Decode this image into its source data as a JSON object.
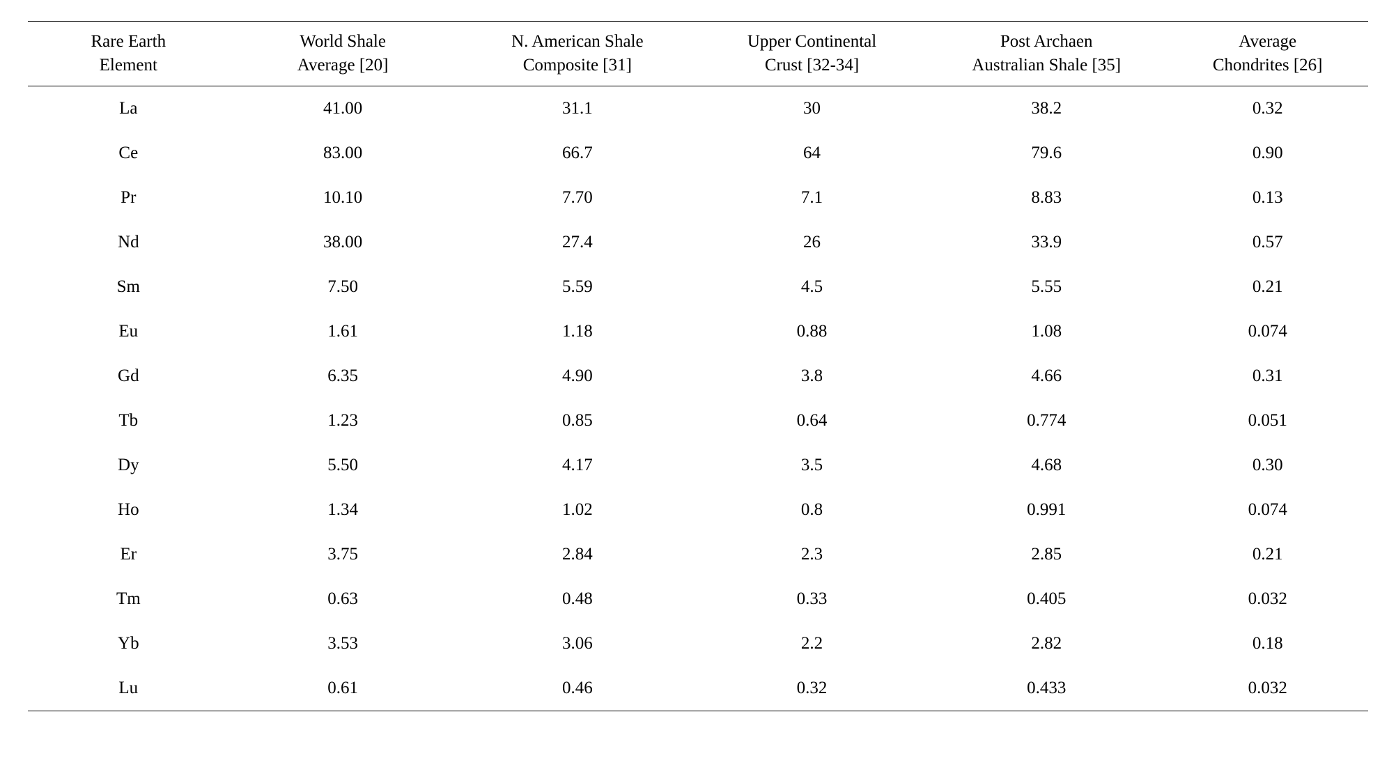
{
  "table": {
    "type": "table",
    "background_color": "#ffffff",
    "text_color": "#000000",
    "border_color": "#000000",
    "font_family": "Times New Roman",
    "header_fontsize": 25,
    "body_fontsize": 25,
    "columns": [
      {
        "line1": "Rare Earth",
        "line2": "Element",
        "width_pct": 15
      },
      {
        "line1": "World Shale",
        "line2": "Average [20]",
        "width_pct": 17
      },
      {
        "line1": "N. American Shale",
        "line2": "Composite [31]",
        "width_pct": 18
      },
      {
        "line1": "Upper Continental",
        "line2": "Crust [32-34]",
        "width_pct": 17
      },
      {
        "line1": "Post Archaen",
        "line2": "Australian Shale [35]",
        "width_pct": 18
      },
      {
        "line1": "Average",
        "line2": "Chondrites [26]",
        "width_pct": 15
      }
    ],
    "rows": [
      [
        "La",
        "41.00",
        "31.1",
        "30",
        "38.2",
        "0.32"
      ],
      [
        "Ce",
        "83.00",
        "66.7",
        "64",
        "79.6",
        "0.90"
      ],
      [
        "Pr",
        "10.10",
        "7.70",
        "7.1",
        "8.83",
        "0.13"
      ],
      [
        "Nd",
        "38.00",
        "27.4",
        "26",
        "33.9",
        "0.57"
      ],
      [
        "Sm",
        "7.50",
        "5.59",
        "4.5",
        "5.55",
        "0.21"
      ],
      [
        "Eu",
        "1.61",
        "1.18",
        "0.88",
        "1.08",
        "0.074"
      ],
      [
        "Gd",
        "6.35",
        "4.90",
        "3.8",
        "4.66",
        "0.31"
      ],
      [
        "Tb",
        "1.23",
        "0.85",
        "0.64",
        "0.774",
        "0.051"
      ],
      [
        "Dy",
        "5.50",
        "4.17",
        "3.5",
        "4.68",
        "0.30"
      ],
      [
        "Ho",
        "1.34",
        "1.02",
        "0.8",
        "0.991",
        "0.074"
      ],
      [
        "Er",
        "3.75",
        "2.84",
        "2.3",
        "2.85",
        "0.21"
      ],
      [
        "Tm",
        "0.63",
        "0.48",
        "0.33",
        "0.405",
        "0.032"
      ],
      [
        "Yb",
        "3.53",
        "3.06",
        "2.2",
        "2.82",
        "0.18"
      ],
      [
        "Lu",
        "0.61",
        "0.46",
        "0.32",
        "0.433",
        "0.032"
      ]
    ]
  }
}
